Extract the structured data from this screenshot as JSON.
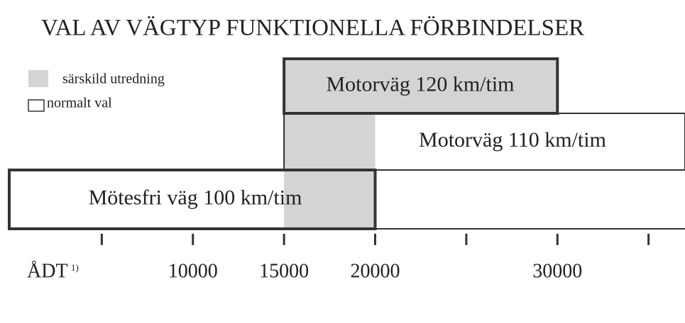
{
  "chart_data": {
    "type": "range",
    "title": "VAL AV VÄGTYP FUNKTIONELLA FÖRBINDELSER",
    "legend": [
      {
        "label": "särskild utredning",
        "color": "#d4d4d4"
      },
      {
        "label": "normalt val",
        "color": "#ffffff"
      }
    ],
    "x_label": "ÅDT",
    "x_label_note": "1)",
    "xlim": [
      0,
      37000
    ],
    "xticks": [
      10000,
      15000,
      20000,
      30000
    ],
    "minor_xticks": [
      5000,
      25000,
      35000
    ],
    "bars": [
      {
        "label": "Motorväg 120 km/tim",
        "start": 15000,
        "end": 30000,
        "color": "#d4d4d4",
        "border": "thick"
      },
      {
        "label": "Motorväg 110 km/tim",
        "start": 15000,
        "end": 37000,
        "color": "#ffffff",
        "border": "thin",
        "special": [
          15000,
          20000
        ]
      },
      {
        "label": "Mötesfri väg 100 km/tim",
        "start": 0,
        "end": 20000,
        "color": "#ffffff",
        "border": "thick",
        "special": [
          15000,
          20000
        ]
      }
    ]
  }
}
